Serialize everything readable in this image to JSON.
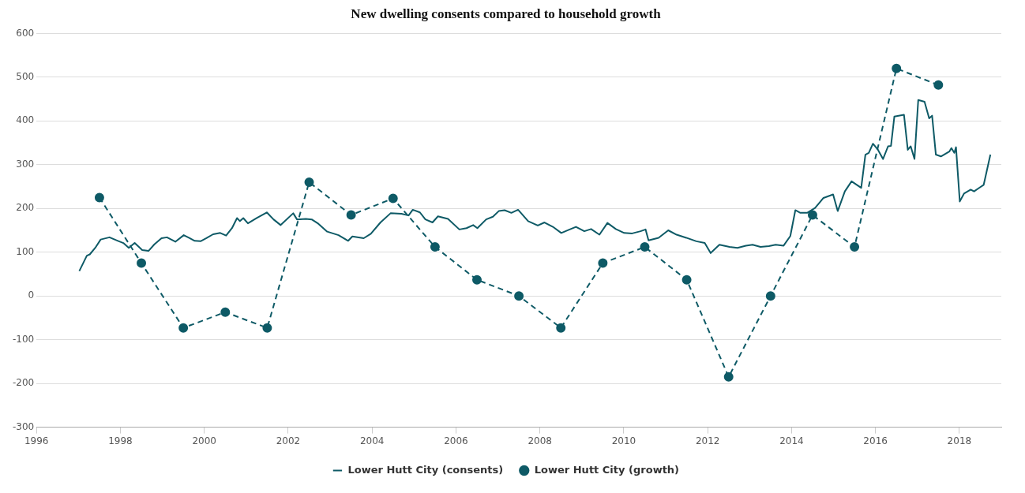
{
  "chart_data": {
    "type": "line",
    "title": "New dwelling consents compared to household growth",
    "xlim": [
      1996,
      2019
    ],
    "xticks": [
      1996,
      1998,
      2000,
      2002,
      2004,
      2006,
      2008,
      2010,
      2012,
      2014,
      2016,
      2018
    ],
    "ylim": [
      -300,
      600
    ],
    "yticks": [
      -300,
      -200,
      -100,
      0,
      100,
      200,
      300,
      400,
      500,
      600
    ],
    "grid": "y",
    "legend": "bottom",
    "series": [
      {
        "name": "Lower Hutt City (consents)",
        "color": "#0e5a66",
        "line_style": "solid",
        "marker": "none",
        "x": [
          1997.02,
          1997.2,
          1997.27,
          1997.4,
          1997.53,
          1997.74,
          1997.94,
          1998.07,
          1998.2,
          1998.34,
          1998.52,
          1998.67,
          1998.81,
          1998.98,
          1999.11,
          1999.31,
          1999.51,
          1999.65,
          1999.77,
          1999.91,
          2000.05,
          2000.21,
          2000.38,
          2000.52,
          2000.66,
          2000.78,
          2000.85,
          2000.93,
          2001.04,
          2001.25,
          2001.49,
          2001.65,
          2001.82,
          2002.12,
          2002.21,
          2002.42,
          2002.56,
          2002.72,
          2002.93,
          2003.2,
          2003.43,
          2003.53,
          2003.8,
          2003.97,
          2004.2,
          2004.44,
          2004.7,
          2004.87,
          2004.97,
          2005.14,
          2005.27,
          2005.44,
          2005.57,
          2005.81,
          2006.08,
          2006.25,
          2006.41,
          2006.51,
          2006.72,
          2006.88,
          2007.02,
          2007.16,
          2007.32,
          2007.48,
          2007.72,
          2007.95,
          2008.11,
          2008.31,
          2008.51,
          2008.71,
          2008.86,
          2009.06,
          2009.22,
          2009.42,
          2009.61,
          2009.81,
          2010.01,
          2010.2,
          2010.4,
          2010.52,
          2010.59,
          2010.83,
          2011.06,
          2011.26,
          2011.49,
          2011.73,
          2011.93,
          2012.07,
          2012.28,
          2012.52,
          2012.71,
          2012.91,
          2013.07,
          2013.26,
          2013.46,
          2013.62,
          2013.81,
          2013.97,
          2014.09,
          2014.21,
          2014.37,
          2014.56,
          2014.76,
          2014.99,
          2015.1,
          2015.27,
          2015.43,
          2015.66,
          2015.76,
          2015.84,
          2015.94,
          2016.06,
          2016.18,
          2016.3,
          2016.37,
          2016.45,
          2016.68,
          2016.77,
          2016.84,
          2016.93,
          2017.02,
          2017.17,
          2017.28,
          2017.35,
          2017.44,
          2017.56,
          2017.76,
          2017.81,
          2017.88,
          2017.92,
          2018.01,
          2018.11,
          2018.27,
          2018.35,
          2018.47,
          2018.58,
          2018.74
        ],
        "values": [
          57,
          92,
          95,
          110,
          129,
          134,
          126,
          121,
          110,
          121,
          105,
          103,
          118,
          132,
          134,
          124,
          139,
          132,
          126,
          125,
          132,
          141,
          144,
          138,
          155,
          178,
          171,
          178,
          166,
          178,
          191,
          175,
          162,
          189,
          175,
          176,
          175,
          165,
          147,
          139,
          126,
          136,
          132,
          142,
          168,
          189,
          188,
          184,
          197,
          191,
          175,
          168,
          182,
          176,
          152,
          155,
          162,
          155,
          175,
          181,
          194,
          196,
          190,
          197,
          171,
          161,
          168,
          158,
          144,
          152,
          158,
          148,
          153,
          140,
          167,
          153,
          144,
          143,
          148,
          152,
          127,
          133,
          150,
          140,
          133,
          125,
          121,
          98,
          117,
          112,
          110,
          115,
          117,
          112,
          114,
          117,
          115,
          137,
          196,
          190,
          190,
          201,
          224,
          232,
          194,
          239,
          262,
          247,
          323,
          327,
          348,
          334,
          313,
          342,
          343,
          410,
          414,
          334,
          342,
          313,
          448,
          444,
          406,
          412,
          323,
          319,
          330,
          338,
          327,
          340,
          216,
          234,
          243,
          239,
          247,
          254,
          323
        ]
      },
      {
        "name": "Lower Hutt City (growth)",
        "color": "#0e5a66",
        "line_style": "dashed",
        "marker": "circle",
        "x": [
          1997.5,
          1998.5,
          1999.5,
          2000.5,
          2001.5,
          2002.5,
          2003.5,
          2004.5,
          2005.5,
          2006.5,
          2007.5,
          2008.5,
          2009.5,
          2010.5,
          2011.5,
          2012.5,
          2013.5,
          2014.5,
          2015.5,
          2016.5,
          2017.5
        ],
        "values": [
          225,
          75,
          -73,
          -37,
          -73,
          260,
          185,
          223,
          112,
          37,
          0,
          -73,
          75,
          112,
          37,
          -185,
          0,
          185,
          112,
          520,
          482
        ]
      }
    ]
  }
}
